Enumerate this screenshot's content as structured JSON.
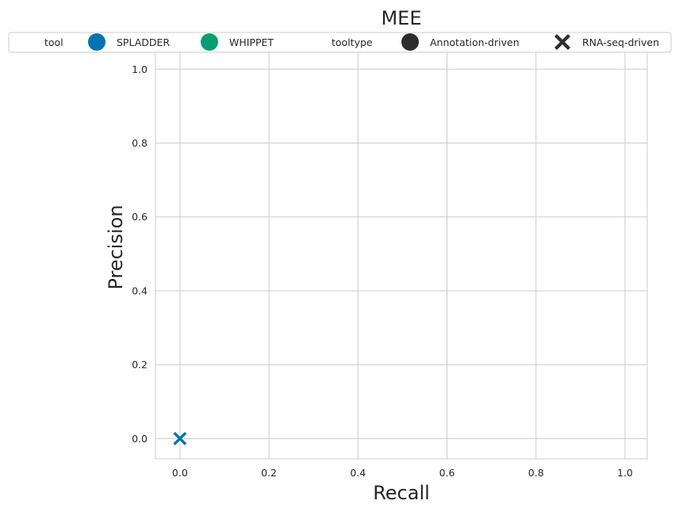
{
  "chart_data": {
    "type": "scatter",
    "title": "MEE",
    "xlabel": "Recall",
    "ylabel": "Precision",
    "xlim": [
      -0.055,
      1.05
    ],
    "ylim": [
      -0.055,
      1.05
    ],
    "xticks": [
      0.0,
      0.2,
      0.4,
      0.6,
      0.8,
      1.0
    ],
    "yticks": [
      0.0,
      0.2,
      0.4,
      0.6,
      0.8,
      1.0
    ],
    "xtick_labels": [
      "0.0",
      "0.2",
      "0.4",
      "0.6",
      "0.8",
      "1.0"
    ],
    "ytick_labels": [
      "0.0",
      "0.2",
      "0.4",
      "0.6",
      "0.8",
      "1.0"
    ],
    "grid": true,
    "legend_placement": "top",
    "legend": {
      "hue_title": "tool",
      "hue_entries": [
        {
          "label": "SPLADDER",
          "color": "#0173b2"
        },
        {
          "label": "WHIPPET",
          "color": "#029e73"
        }
      ],
      "style_title": "tooltype",
      "style_entries": [
        {
          "label": "Annotation-driven",
          "marker": "circle",
          "color": "#2d2d2d"
        },
        {
          "label": "RNA-seq-driven",
          "marker": "x",
          "color": "#2d2d2d"
        }
      ]
    },
    "points": [
      {
        "x": 0.0,
        "y": 0.0,
        "tool": "WHIPPET",
        "tooltype": "RNA-seq-driven",
        "color": "#029e73",
        "marker": "x"
      },
      {
        "x": 0.0,
        "y": 0.0,
        "tool": "SPLADDER",
        "tooltype": "RNA-seq-driven",
        "color": "#0173b2",
        "marker": "x"
      }
    ]
  },
  "colors": {
    "grid": "#cccccc",
    "axes_edge": "#cccccc",
    "text": "#262626"
  }
}
